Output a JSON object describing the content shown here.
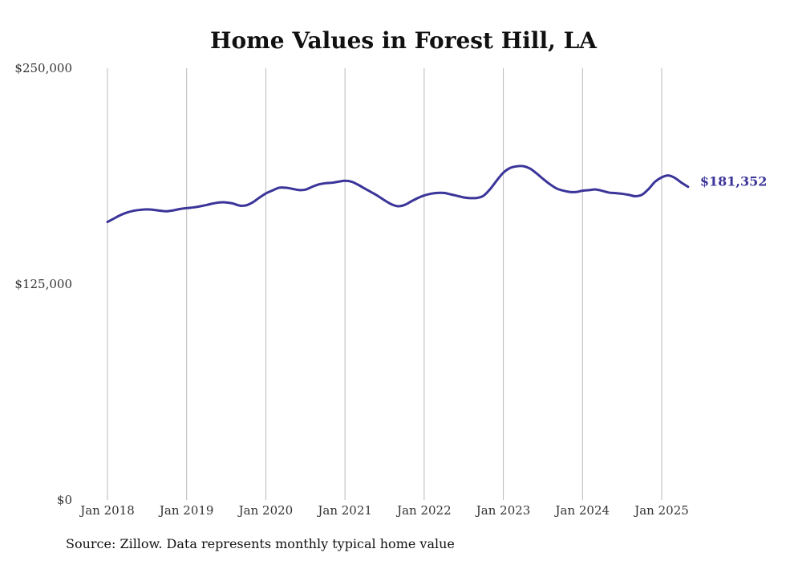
{
  "chart_data": {
    "type": "line",
    "title": "Home Values in Forest Hill, LA",
    "xlabel": "",
    "ylabel": "",
    "ylim": [
      0,
      250000
    ],
    "y_ticks": [
      0,
      125000,
      250000
    ],
    "y_tick_labels": [
      "$0",
      "$125,000",
      "$250,000"
    ],
    "x_tick_labels": [
      "Jan 2018",
      "Jan 2019",
      "Jan 2020",
      "Jan 2021",
      "Jan 2022",
      "Jan 2023",
      "Jan 2024",
      "Jan 2025"
    ],
    "x_ticks": [
      "2018-01",
      "2019-01",
      "2020-01",
      "2021-01",
      "2022-01",
      "2023-01",
      "2024-01",
      "2025-01"
    ],
    "grid": "vertical",
    "series": [
      {
        "color": "#3b3499",
        "end_label": "$181,352",
        "points": [
          [
            "2018-01",
            161000
          ],
          [
            "2018-02",
            163000
          ],
          [
            "2018-03",
            165000
          ],
          [
            "2018-04",
            166500
          ],
          [
            "2018-05",
            167500
          ],
          [
            "2018-06",
            168000
          ],
          [
            "2018-07",
            168300
          ],
          [
            "2018-08",
            168000
          ],
          [
            "2018-09",
            167500
          ],
          [
            "2018-10",
            167200
          ],
          [
            "2018-11",
            167700
          ],
          [
            "2018-12",
            168500
          ],
          [
            "2019-01",
            169000
          ],
          [
            "2019-02",
            169400
          ],
          [
            "2019-03",
            170000
          ],
          [
            "2019-04",
            170800
          ],
          [
            "2019-05",
            171700
          ],
          [
            "2019-06",
            172300
          ],
          [
            "2019-07",
            172300
          ],
          [
            "2019-08",
            171700
          ],
          [
            "2019-09",
            170500
          ],
          [
            "2019-10",
            170600
          ],
          [
            "2019-11",
            172300
          ],
          [
            "2019-12",
            175000
          ],
          [
            "2020-01",
            177500
          ],
          [
            "2020-02",
            179200
          ],
          [
            "2020-03",
            180800
          ],
          [
            "2020-04",
            180800
          ],
          [
            "2020-05",
            180200
          ],
          [
            "2020-06",
            179500
          ],
          [
            "2020-07",
            179700
          ],
          [
            "2020-08",
            181300
          ],
          [
            "2020-09",
            182700
          ],
          [
            "2020-10",
            183400
          ],
          [
            "2020-11",
            183700
          ],
          [
            "2020-12",
            184300
          ],
          [
            "2021-01",
            184800
          ],
          [
            "2021-02",
            184300
          ],
          [
            "2021-03",
            182500
          ],
          [
            "2021-04",
            180300
          ],
          [
            "2021-05",
            178200
          ],
          [
            "2021-06",
            176000
          ],
          [
            "2021-07",
            173500
          ],
          [
            "2021-08",
            171300
          ],
          [
            "2021-09",
            170100
          ],
          [
            "2021-10",
            170800
          ],
          [
            "2021-11",
            172800
          ],
          [
            "2021-12",
            174800
          ],
          [
            "2022-01",
            176300
          ],
          [
            "2022-02",
            177300
          ],
          [
            "2022-03",
            177800
          ],
          [
            "2022-04",
            177800
          ],
          [
            "2022-05",
            177000
          ],
          [
            "2022-06",
            176100
          ],
          [
            "2022-07",
            175200
          ],
          [
            "2022-08",
            174800
          ],
          [
            "2022-09",
            174900
          ],
          [
            "2022-10",
            176200
          ],
          [
            "2022-11",
            180000
          ],
          [
            "2022-12",
            185000
          ],
          [
            "2023-01",
            189500
          ],
          [
            "2023-02",
            192200
          ],
          [
            "2023-03",
            193200
          ],
          [
            "2023-04",
            193300
          ],
          [
            "2023-05",
            192000
          ],
          [
            "2023-06",
            189200
          ],
          [
            "2023-07",
            186000
          ],
          [
            "2023-08",
            183000
          ],
          [
            "2023-09",
            180500
          ],
          [
            "2023-10",
            179200
          ],
          [
            "2023-11",
            178400
          ],
          [
            "2023-12",
            178300
          ],
          [
            "2024-01",
            179100
          ],
          [
            "2024-02",
            179400
          ],
          [
            "2024-03",
            179800
          ],
          [
            "2024-04",
            179000
          ],
          [
            "2024-05",
            178000
          ],
          [
            "2024-06",
            177700
          ],
          [
            "2024-07",
            177300
          ],
          [
            "2024-08",
            176700
          ],
          [
            "2024-09",
            175900
          ],
          [
            "2024-10",
            176700
          ],
          [
            "2024-11",
            180000
          ],
          [
            "2024-12",
            184300
          ],
          [
            "2025-01",
            186800
          ],
          [
            "2025-02",
            187900
          ],
          [
            "2025-03",
            186500
          ],
          [
            "2025-04",
            183700
          ],
          [
            "2025-05",
            181352
          ]
        ]
      }
    ]
  },
  "footer": {
    "source": "Source: Zillow. Data represents monthly typical home value"
  }
}
